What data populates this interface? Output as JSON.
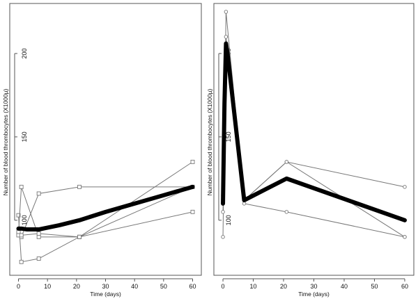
{
  "chart_data": [
    {
      "type": "line",
      "xlabel": "Time (days)",
      "ylabel": "Number of blood thrombocytes (X1000µ)",
      "xlim": [
        -3,
        63
      ],
      "ylim": [
        67,
        230
      ],
      "xticks": [
        "0",
        "10",
        "20",
        "30",
        "40",
        "50",
        "60"
      ],
      "yticks": [
        "100",
        "150",
        "200"
      ],
      "marker": "square",
      "grid": false,
      "series": [
        {
          "x": [
            0,
            1,
            7,
            21,
            60
          ],
          "y": [
            103,
            75,
            77,
            90,
            105
          ]
        },
        {
          "x": [
            0,
            1,
            7,
            21,
            60
          ],
          "y": [
            92,
            120,
            90,
            90,
            120
          ]
        },
        {
          "x": [
            0,
            1,
            7,
            21,
            60
          ],
          "y": [
            93,
            90,
            116,
            120,
            120
          ]
        },
        {
          "x": [
            0,
            1,
            7,
            21,
            60
          ],
          "y": [
            91,
            91,
            92,
            90,
            135
          ]
        }
      ],
      "mean": {
        "x": [
          0,
          1,
          3,
          7,
          14,
          21,
          30,
          40,
          50,
          60
        ],
        "y": [
          95,
          95,
          94.5,
          94.5,
          97,
          100,
          105,
          110,
          115,
          120
        ]
      }
    },
    {
      "type": "line",
      "xlabel": "Time (days)",
      "ylabel": "Number of blood thrombocytes (X1000µ)",
      "xlim": [
        -3,
        63
      ],
      "ylim": [
        67,
        230
      ],
      "xticks": [
        "0",
        "10",
        "20",
        "30",
        "40",
        "50",
        "60"
      ],
      "yticks": [
        "100",
        "150",
        "200"
      ],
      "marker": "circle",
      "grid": false,
      "series": [
        {
          "x": [
            0,
            1,
            7,
            21,
            60
          ],
          "y": [
            90,
            225,
            112,
            135,
            120
          ]
        },
        {
          "x": [
            0,
            1,
            7,
            21,
            60
          ],
          "y": [
            105,
            210,
            110,
            105,
            90
          ]
        },
        {
          "x": [
            0,
            1,
            7,
            21,
            60
          ],
          "y": [
            115,
            200,
            112,
            135,
            90
          ]
        }
      ],
      "mean": {
        "x": [
          0,
          0.5,
          1,
          1.5,
          7,
          21,
          60
        ],
        "y": [
          110,
          170,
          206,
          200,
          112,
          125,
          100
        ]
      }
    }
  ]
}
